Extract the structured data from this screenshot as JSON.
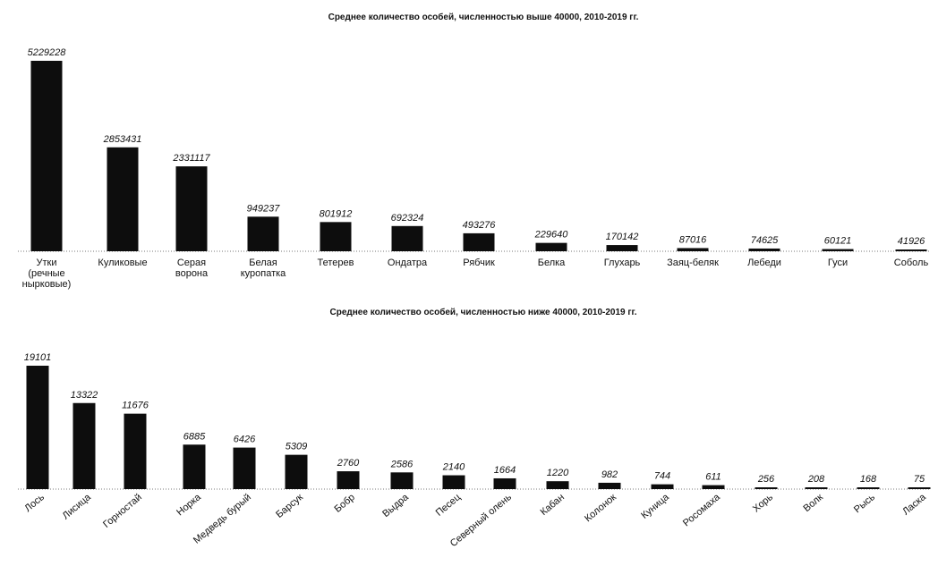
{
  "chart_data": [
    {
      "type": "bar",
      "title": "Среднее количество особей, численностью выше 40000, 2010-2019 гг.",
      "categories": [
        [
          "Утки",
          "(речные",
          "нырковые)"
        ],
        [
          "Куликовые"
        ],
        [
          "Серая",
          "ворона"
        ],
        [
          "Белая",
          "куропатка"
        ],
        [
          "Тетерев"
        ],
        [
          "Ондатра"
        ],
        [
          "Рябчик"
        ],
        [
          "Белка"
        ],
        [
          "Глухарь"
        ],
        [
          "Заяц-беляк"
        ],
        [
          "Лебеди"
        ],
        [
          "Гуси"
        ],
        [
          "Соболь"
        ]
      ],
      "values": [
        5229228,
        2853431,
        2331117,
        949237,
        801912,
        692324,
        493276,
        229640,
        170142,
        87016,
        74625,
        60121,
        41926
      ],
      "ylim": [
        0,
        5229228
      ],
      "grid": false,
      "legend": "none"
    },
    {
      "type": "bar",
      "title": "Среднее количество особей, численностью ниже 40000, 2010-2019 гг.",
      "categories": [
        "Лось",
        "Лисица",
        "Горностай",
        "Норка",
        "Медведь бурый",
        "Барсук",
        "Бобр",
        "Выдра",
        "Песец",
        "Северный олень",
        "Кабан",
        "Колонок",
        "Куница",
        "Росомаха",
        "Хорь",
        "Волк",
        "Рысь",
        "Ласка"
      ],
      "values": [
        19101,
        13322,
        11676,
        6885,
        6426,
        5309,
        2760,
        2586,
        2140,
        1664,
        1220,
        982,
        744,
        611,
        256,
        208,
        168,
        75
      ],
      "ylim": [
        0,
        19101
      ],
      "grid": false,
      "legend": "none"
    }
  ],
  "colors": {
    "bar": "#0d0d0d",
    "background": "#ffffff"
  }
}
